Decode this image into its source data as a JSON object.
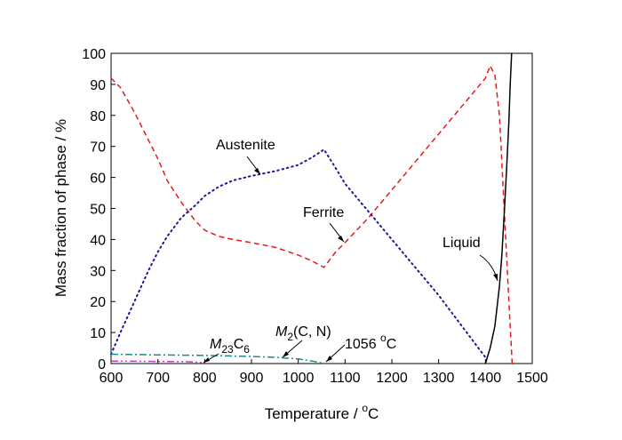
{
  "chart_data": {
    "type": "line",
    "xlabel": "Temperature / °C",
    "xlabel_main": "Temperature / ",
    "xlabel_deg": "o",
    "xlabel_unit": "C",
    "ylabel": "Mass fraction of phase / %",
    "xlim": [
      600,
      1500
    ],
    "ylim": [
      0,
      100
    ],
    "xticks": [
      600,
      700,
      800,
      900,
      1000,
      1100,
      1200,
      1300,
      1400,
      1500
    ],
    "yticks": [
      0,
      10,
      20,
      30,
      40,
      50,
      60,
      70,
      80,
      90,
      100
    ],
    "grid": false,
    "series": [
      {
        "name": "Ferrite",
        "color": "#e41a1c",
        "style": "dashed",
        "x": [
          600,
          620,
          650,
          680,
          700,
          720,
          750,
          780,
          800,
          830,
          860,
          900,
          950,
          1000,
          1030,
          1055,
          1080,
          1100,
          1150,
          1200,
          1250,
          1300,
          1350,
          1400,
          1410,
          1420,
          1430,
          1440,
          1450,
          1457
        ],
        "y": [
          92,
          89,
          81,
          72,
          66,
          59,
          52,
          46,
          43,
          41,
          40,
          39,
          37.5,
          35,
          33,
          31,
          36,
          39,
          47,
          56,
          65,
          74,
          83,
          92,
          96,
          93,
          80,
          50,
          20,
          0
        ]
      },
      {
        "name": "Austenite",
        "color": "#1a1a99",
        "style": "dotted",
        "x": [
          600,
          620,
          650,
          680,
          700,
          720,
          750,
          780,
          800,
          830,
          860,
          900,
          950,
          1000,
          1030,
          1055,
          1080,
          1100,
          1150,
          1200,
          1250,
          1300,
          1350,
          1380,
          1400
        ],
        "y": [
          3,
          10,
          20,
          30,
          36,
          41,
          47,
          51,
          54,
          57,
          59,
          60.5,
          62,
          64,
          66.5,
          69,
          63,
          58,
          49,
          40,
          31,
          22,
          12,
          6,
          2
        ]
      },
      {
        "name": "Liquid",
        "color": "#000000",
        "style": "solid",
        "x": [
          1400,
          1410,
          1420,
          1430,
          1435,
          1440,
          1445,
          1450,
          1453,
          1456
        ],
        "y": [
          0,
          5,
          12,
          25,
          35,
          48,
          62,
          78,
          90,
          100
        ]
      },
      {
        "name": "M2(C, N)",
        "color": "#1f8a8a",
        "style": "dashdot",
        "x": [
          600,
          700,
          800,
          900,
          950,
          1000,
          1030,
          1056
        ],
        "y": [
          3,
          2.8,
          2.6,
          2.3,
          2.0,
          1.5,
          0.8,
          0
        ]
      },
      {
        "name": "M23C6",
        "color": "#cc33cc",
        "style": "dashdotdot",
        "x": [
          600,
          700,
          760,
          790,
          800
        ],
        "y": [
          0.8,
          0.7,
          0.6,
          0.4,
          0
        ]
      }
    ],
    "annotations": [
      {
        "id": "austenite",
        "label": "Austenite"
      },
      {
        "id": "ferrite",
        "label": "Ferrite"
      },
      {
        "id": "liquid",
        "label": "Liquid"
      },
      {
        "id": "m2cn",
        "label_italic": "M",
        "label_sub": "2",
        "label_rest": "(C, N)"
      },
      {
        "id": "m23c6",
        "label_italic": "M",
        "label_sub": "23",
        "label_rest": "C",
        "label_sub2": "6"
      },
      {
        "id": "temp1056",
        "label_main": "1056 ",
        "label_sup": "o",
        "label_unit": "C"
      }
    ]
  }
}
